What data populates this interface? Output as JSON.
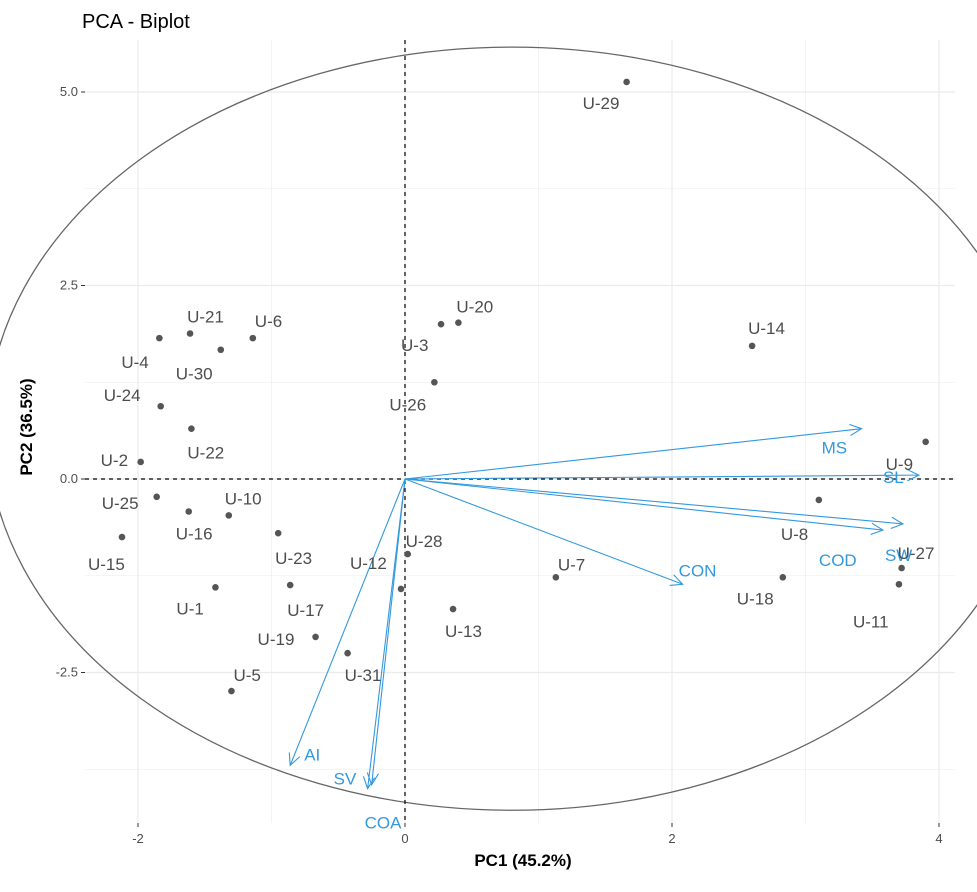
{
  "chart_data": {
    "type": "scatter",
    "title": "PCA - Biplot",
    "xlabel": "PC1 (45.2%)",
    "ylabel": "PC2 (36.5%)",
    "xlim": [
      -2.5,
      4.1
    ],
    "ylim": [
      -4.4,
      5.7
    ],
    "x_ticks": [
      -2,
      0,
      2,
      4
    ],
    "x_tick_labels": [
      "-2",
      "0",
      "2",
      "4"
    ],
    "y_ticks": [
      -2.5,
      0,
      2.5,
      5
    ],
    "y_tick_labels": [
      "-2.5",
      "0.0",
      "2.5",
      "5.0"
    ],
    "grid": true,
    "legend": "none",
    "colors": {
      "points": "#555555",
      "point_labels": "#4d4d4d",
      "vectors": "#3399dd",
      "circle": "#666666",
      "grid": "#ebebeb"
    },
    "points": [
      {
        "label": "U-1",
        "x": -1.42,
        "y": -1.4
      },
      {
        "label": "U-2",
        "x": -1.98,
        "y": 0.22
      },
      {
        "label": "U-3",
        "x": 0.27,
        "y": 2.0
      },
      {
        "label": "U-4",
        "x": -1.84,
        "y": 1.82
      },
      {
        "label": "U-5",
        "x": -1.3,
        "y": -2.74
      },
      {
        "label": "U-6",
        "x": -1.14,
        "y": 1.82
      },
      {
        "label": "U-7",
        "x": 1.13,
        "y": -1.27
      },
      {
        "label": "U-8",
        "x": 3.1,
        "y": -0.27
      },
      {
        "label": "U-9",
        "x": 3.9,
        "y": 0.48
      },
      {
        "label": "U-10",
        "x": -1.32,
        "y": -0.47
      },
      {
        "label": "U-11",
        "x": 3.7,
        "y": -1.36
      },
      {
        "label": "U-12",
        "x": -0.03,
        "y": -1.42
      },
      {
        "label": "U-13",
        "x": 0.36,
        "y": -1.68
      },
      {
        "label": "U-14",
        "x": 2.6,
        "y": 1.72
      },
      {
        "label": "U-15",
        "x": -2.12,
        "y": -0.75
      },
      {
        "label": "U-16",
        "x": -1.62,
        "y": -0.42
      },
      {
        "label": "U-17",
        "x": -0.86,
        "y": -1.37
      },
      {
        "label": "U-18",
        "x": 2.83,
        "y": -1.27
      },
      {
        "label": "U-19",
        "x": -0.67,
        "y": -2.04
      },
      {
        "label": "U-20",
        "x": 0.4,
        "y": 2.02
      },
      {
        "label": "U-21",
        "x": -1.61,
        "y": 1.88
      },
      {
        "label": "U-22",
        "x": -1.6,
        "y": 0.65
      },
      {
        "label": "U-23",
        "x": -0.95,
        "y": -0.7
      },
      {
        "label": "U-24",
        "x": -1.83,
        "y": 0.94
      },
      {
        "label": "U-25",
        "x": -1.86,
        "y": -0.23
      },
      {
        "label": "U-26",
        "x": 0.22,
        "y": 1.25
      },
      {
        "label": "U-27",
        "x": 3.72,
        "y": -1.15
      },
      {
        "label": "U-28",
        "x": 0.02,
        "y": -0.97
      },
      {
        "label": "U-29",
        "x": 1.66,
        "y": 5.13
      },
      {
        "label": "U-30",
        "x": -1.38,
        "y": 1.67
      },
      {
        "label": "U-31",
        "x": -0.43,
        "y": -2.25
      }
    ],
    "vectors": [
      {
        "label": "MS",
        "x": 3.42,
        "y": 0.65
      },
      {
        "label": "SL",
        "x": 3.85,
        "y": 0.05
      },
      {
        "label": "SW",
        "x": 3.73,
        "y": -0.58
      },
      {
        "label": "COD",
        "x": 3.58,
        "y": -0.66
      },
      {
        "label": "CON",
        "x": 2.08,
        "y": -1.36
      },
      {
        "label": "AI",
        "x": -0.86,
        "y": -3.7
      },
      {
        "label": "SV",
        "x": -0.25,
        "y": -3.95
      },
      {
        "label": "COA",
        "x": -0.28,
        "y": -4.0
      }
    ]
  }
}
